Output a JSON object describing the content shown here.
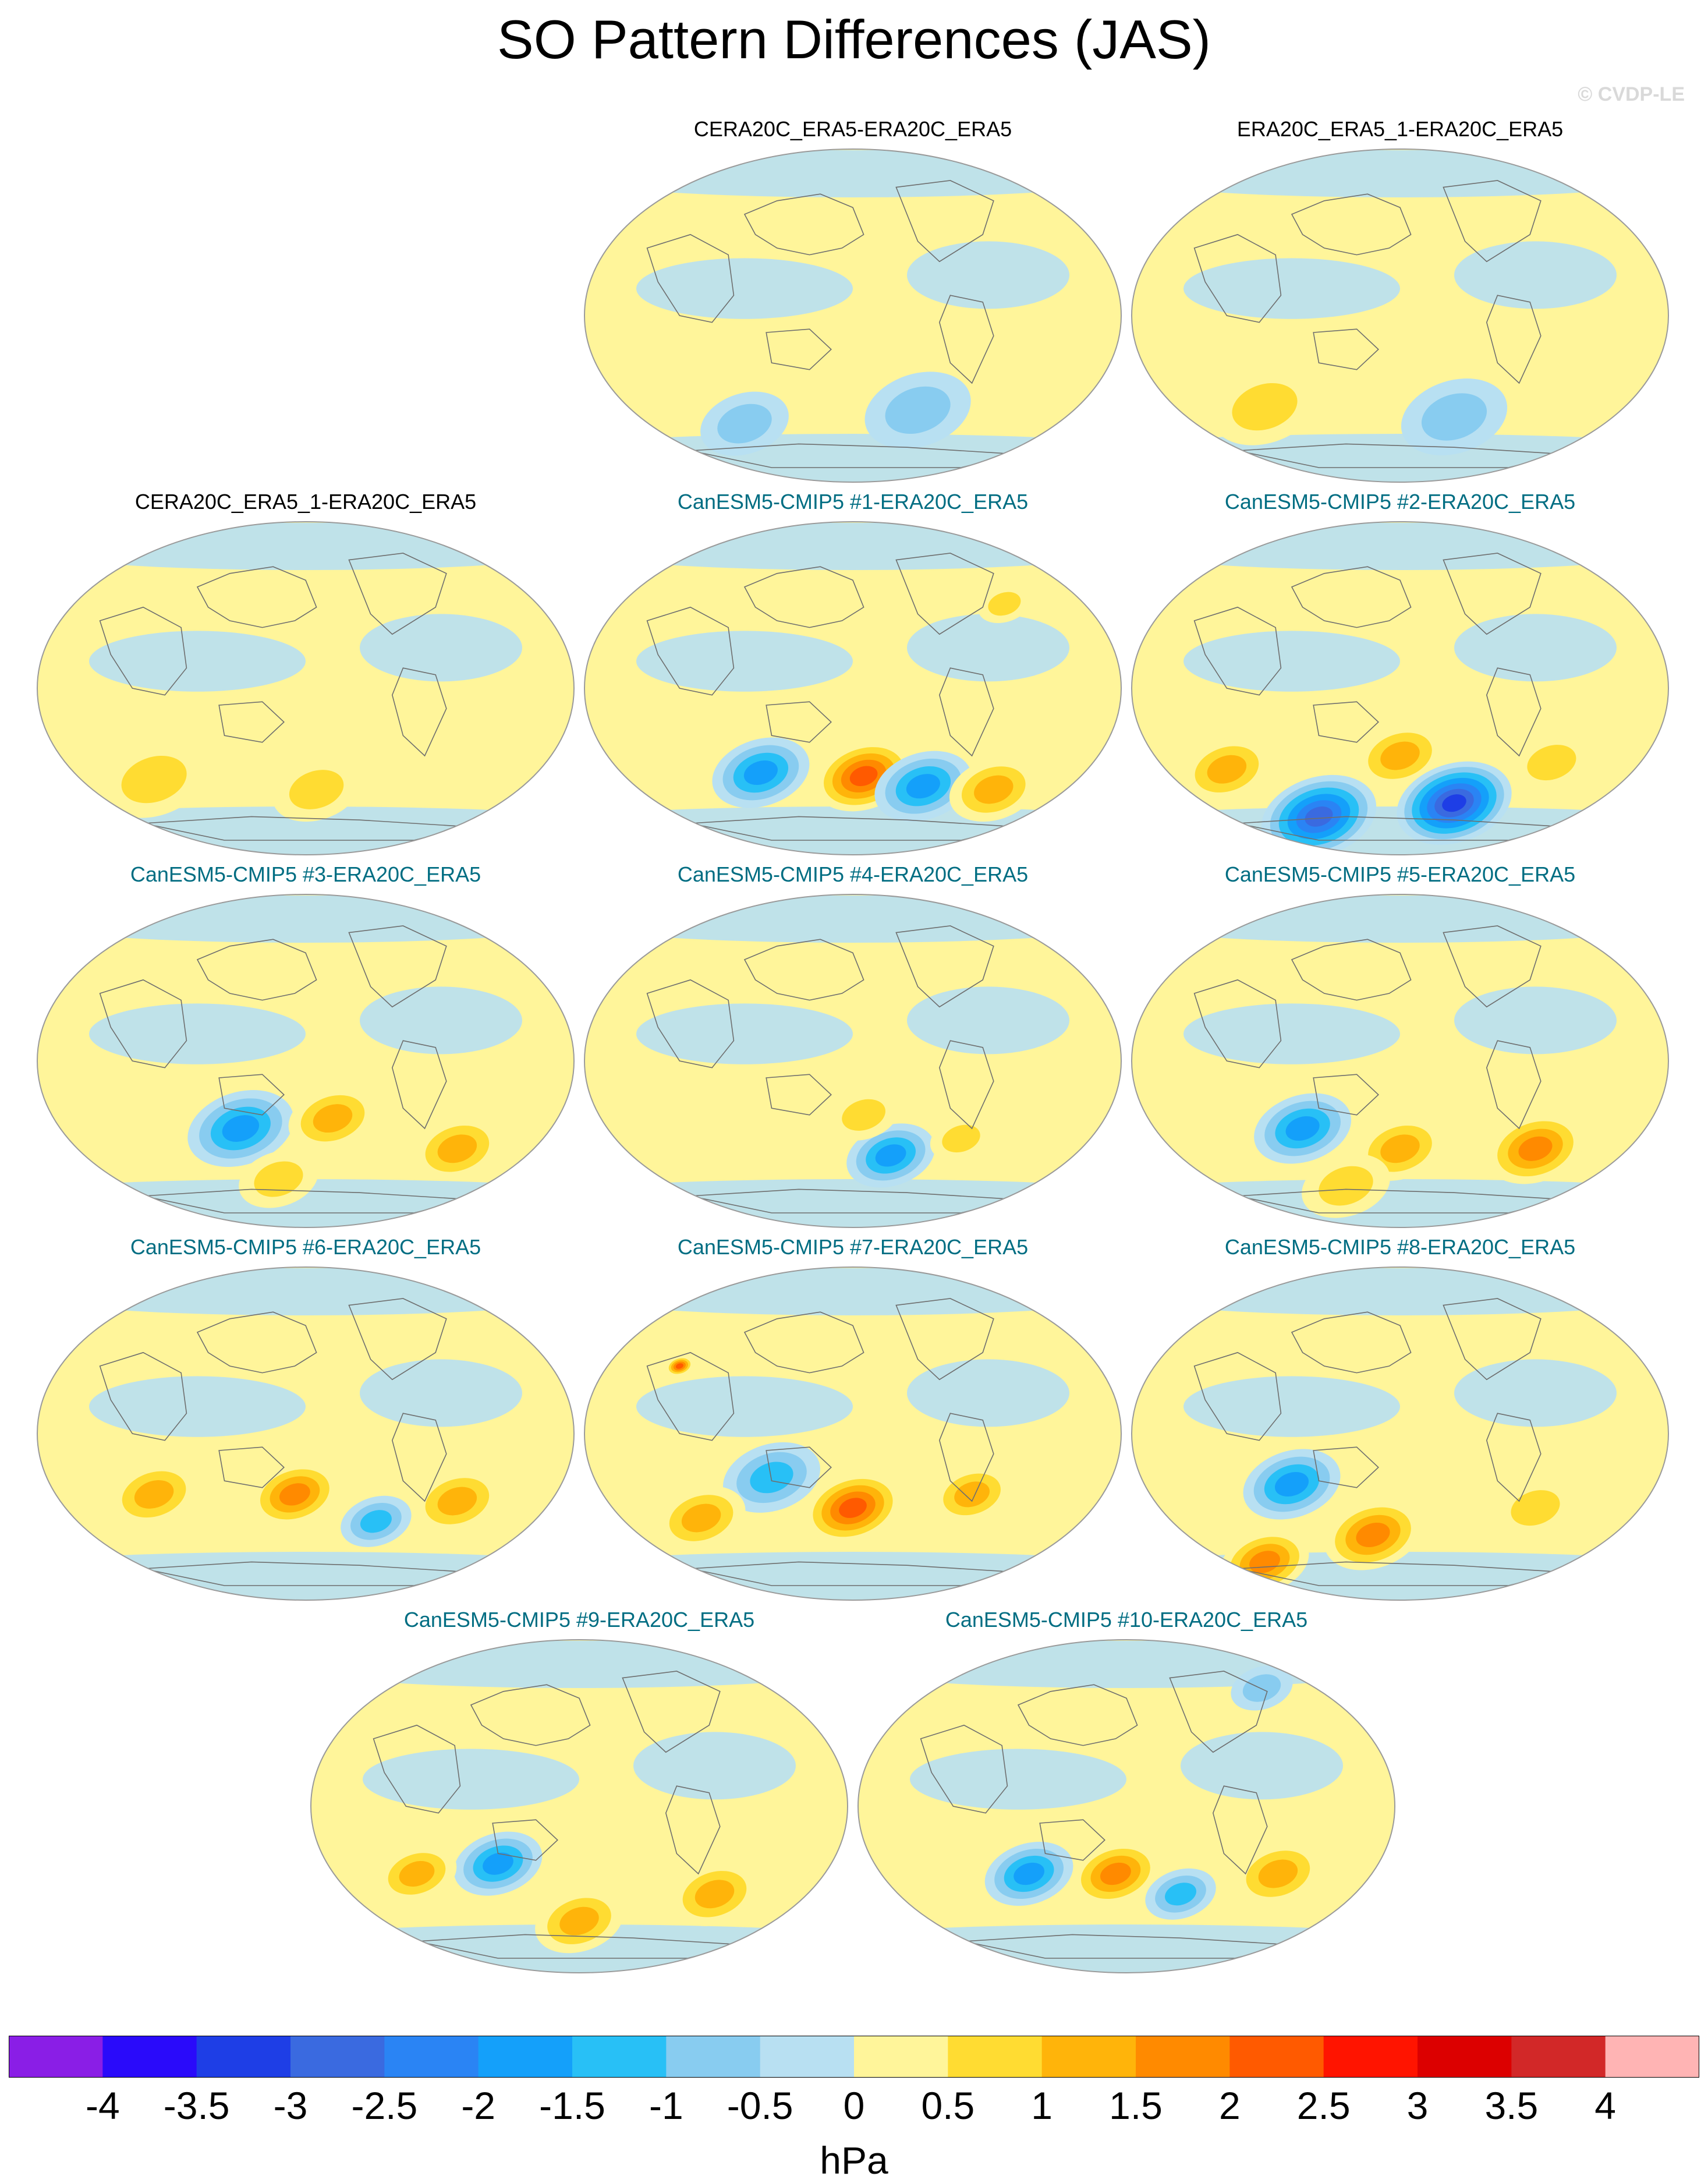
{
  "figure": {
    "title": "SO Pattern Differences (JAS)",
    "copyright": "© CVDP-LE"
  },
  "panels": [
    {
      "title": "CERA20C_ERA5-ERA20C_ERA5",
      "kind": "obs",
      "row": 0,
      "col": 1,
      "anomalies": [
        [
          0.62,
          0.78,
          -1,
          1.2
        ],
        [
          0.3,
          0.82,
          -1,
          1.0
        ]
      ]
    },
    {
      "title": "ERA20C_ERA5_1-ERA20C_ERA5",
      "kind": "obs",
      "row": 0,
      "col": 2,
      "anomalies": [
        [
          0.25,
          0.77,
          1,
          1.2
        ],
        [
          0.6,
          0.8,
          -1,
          1.2
        ]
      ]
    },
    {
      "title": "CERA20C_ERA5_1-ERA20C_ERA5",
      "kind": "obs",
      "row": 1,
      "col": 0,
      "anomalies": [
        [
          0.22,
          0.77,
          1,
          1.2
        ],
        [
          0.52,
          0.8,
          1,
          1.0
        ]
      ]
    },
    {
      "title": "CanESM5-CMIP5 #1-ERA20C_ERA5",
      "kind": "model",
      "row": 1,
      "col": 1,
      "anomalies": [
        [
          0.33,
          0.75,
          -2,
          1.1
        ],
        [
          0.52,
          0.76,
          2.5,
          1.1
        ],
        [
          0.63,
          0.79,
          -2,
          1.1
        ],
        [
          0.76,
          0.8,
          1.5,
          1.0
        ],
        [
          0.78,
          0.25,
          1,
          0.6
        ]
      ]
    },
    {
      "title": "CanESM5-CMIP5 #2-ERA20C_ERA5",
      "kind": "model",
      "row": 1,
      "col": 2,
      "anomalies": [
        [
          0.18,
          0.74,
          1.5,
          1.0
        ],
        [
          0.5,
          0.7,
          1.5,
          1.0
        ],
        [
          0.35,
          0.88,
          -3,
          1.3
        ],
        [
          0.6,
          0.84,
          -3.5,
          1.3
        ],
        [
          0.78,
          0.72,
          1,
          0.9
        ]
      ]
    },
    {
      "title": "CanESM5-CMIP5 #3-ERA20C_ERA5",
      "kind": "model",
      "row": 2,
      "col": 0,
      "anomalies": [
        [
          0.38,
          0.7,
          -2,
          1.2
        ],
        [
          0.55,
          0.67,
          1.5,
          1.0
        ],
        [
          0.78,
          0.76,
          1.5,
          1.0
        ],
        [
          0.45,
          0.85,
          1,
          0.9
        ]
      ]
    },
    {
      "title": "CanESM5-CMIP5 #4-ERA20C_ERA5",
      "kind": "model",
      "row": 2,
      "col": 1,
      "anomalies": [
        [
          0.57,
          0.78,
          -2,
          1.0
        ],
        [
          0.52,
          0.66,
          1,
          0.8
        ],
        [
          0.7,
          0.73,
          1,
          0.7
        ]
      ]
    },
    {
      "title": "CanESM5-CMIP5 #5-ERA20C_ERA5",
      "kind": "model",
      "row": 2,
      "col": 2,
      "anomalies": [
        [
          0.32,
          0.7,
          -2,
          1.1
        ],
        [
          0.5,
          0.76,
          1.5,
          1.0
        ],
        [
          0.75,
          0.76,
          2,
          1.1
        ],
        [
          0.4,
          0.87,
          1,
          1.0
        ]
      ]
    },
    {
      "title": "CanESM5-CMIP5 #6-ERA20C_ERA5",
      "kind": "model",
      "row": 3,
      "col": 0,
      "anomalies": [
        [
          0.22,
          0.68,
          1.5,
          1.0
        ],
        [
          0.48,
          0.68,
          2,
          1.0
        ],
        [
          0.63,
          0.76,
          -1.5,
          0.8
        ],
        [
          0.78,
          0.7,
          1.5,
          1.0
        ]
      ]
    },
    {
      "title": "CanESM5-CMIP5 #7-ERA20C_ERA5",
      "kind": "model",
      "row": 3,
      "col": 1,
      "anomalies": [
        [
          0.35,
          0.63,
          -1.5,
          1.1
        ],
        [
          0.22,
          0.75,
          1.5,
          1.0
        ],
        [
          0.5,
          0.72,
          2.5,
          1.1
        ],
        [
          0.72,
          0.68,
          1.5,
          0.9
        ],
        [
          0.18,
          0.3,
          2.5,
          0.3
        ]
      ]
    },
    {
      "title": "CanESM5-CMIP5 #8-ERA20C_ERA5",
      "kind": "model",
      "row": 3,
      "col": 2,
      "anomalies": [
        [
          0.3,
          0.65,
          -2,
          1.1
        ],
        [
          0.45,
          0.8,
          2,
          1.1
        ],
        [
          0.25,
          0.88,
          2,
          1.0
        ],
        [
          0.75,
          0.72,
          1,
          0.9
        ]
      ]
    },
    {
      "title": "CanESM5-CMIP5 #9-ERA20C_ERA5",
      "kind": "model",
      "row": 4,
      "col": 0.5,
      "anomalies": [
        [
          0.35,
          0.67,
          -2,
          1.0
        ],
        [
          0.2,
          0.7,
          1.5,
          0.9
        ],
        [
          0.5,
          0.84,
          1.5,
          1.0
        ],
        [
          0.75,
          0.76,
          1.5,
          1.0
        ]
      ]
    },
    {
      "title": "CanESM5-CMIP5 #10-ERA20C_ERA5",
      "kind": "model",
      "row": 4,
      "col": 1.5,
      "anomalies": [
        [
          0.32,
          0.7,
          -2,
          1.0
        ],
        [
          0.48,
          0.7,
          2,
          1.0
        ],
        [
          0.6,
          0.76,
          -1.5,
          0.8
        ],
        [
          0.78,
          0.7,
          1.5,
          1.0
        ],
        [
          0.75,
          0.15,
          -1,
          0.7
        ]
      ]
    }
  ],
  "colorbar": {
    "labels": [
      "-4",
      "-3.5",
      "-3",
      "-2.5",
      "-2",
      "-1.5",
      "-1",
      "-0.5",
      "0",
      "0.5",
      "1",
      "1.5",
      "2",
      "2.5",
      "3",
      "3.5",
      "4"
    ],
    "colors": [
      "#8a1ee6",
      "#2a0afa",
      "#1e3ee6",
      "#3a6ae0",
      "#2a84f4",
      "#14a0fa",
      "#28c0f6",
      "#88ccf0",
      "#b8e0f2",
      "#fff59a",
      "#ffdc32",
      "#ffb40a",
      "#ff8a00",
      "#ff5a00",
      "#ff1400",
      "#dc0000",
      "#d22828",
      "#ffb4b4"
    ],
    "units": "hPa"
  }
}
